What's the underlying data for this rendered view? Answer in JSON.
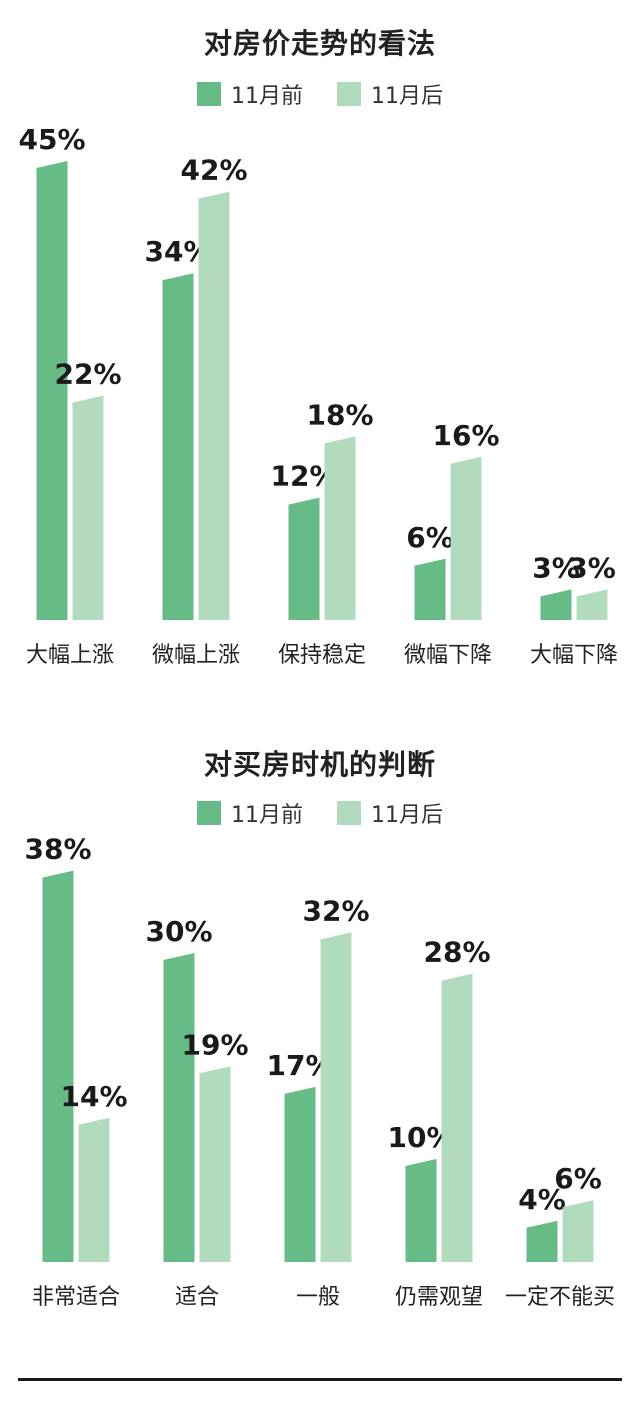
{
  "colors": {
    "before": "#66bb87",
    "after": "#b1dbbc"
  },
  "legend": {
    "before": "11月前",
    "after": "11月后"
  },
  "chart_data": [
    {
      "type": "bar",
      "title": "对房价走势的看法",
      "categories": [
        "大幅上涨",
        "微幅上涨",
        "保持稳定",
        "微幅下降",
        "大幅下降"
      ],
      "series": [
        {
          "name": "11月前",
          "values": [
            45,
            34,
            12,
            6,
            3
          ]
        },
        {
          "name": "11月后",
          "values": [
            22,
            42,
            18,
            16,
            3
          ]
        }
      ],
      "unit": "%"
    },
    {
      "type": "bar",
      "title": "对买房时机的判断",
      "categories": [
        "非常适合",
        "适合",
        "一般",
        "仍需观望",
        "一定不能买"
      ],
      "series": [
        {
          "name": "11月前",
          "values": [
            38,
            30,
            17,
            10,
            4
          ]
        },
        {
          "name": "11月后",
          "values": [
            14,
            19,
            32,
            28,
            6
          ]
        }
      ],
      "unit": "%"
    }
  ]
}
